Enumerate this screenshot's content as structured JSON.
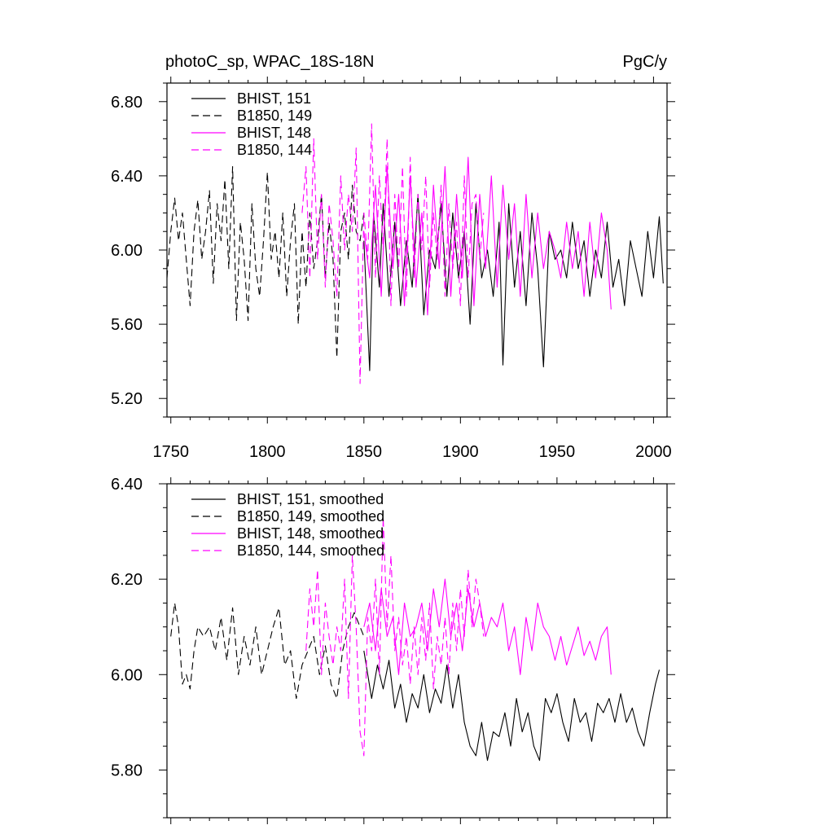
{
  "chart_data": [
    {
      "type": "line",
      "title": "photoC_sp, WPAC_18S-18N",
      "units": "PgC/y",
      "xlim": [
        1748,
        2007
      ],
      "ylim": [
        5.1,
        6.9
      ],
      "xticks": [
        1750,
        1800,
        1850,
        1900,
        1950,
        2000
      ],
      "xtick_labels": [
        "1750",
        "1800",
        "1850",
        "1900",
        "1950",
        "2000"
      ],
      "yticks": [
        5.2,
        5.6,
        6.0,
        6.4,
        6.8
      ],
      "ytick_labels": [
        "5.20",
        "5.60",
        "6.00",
        "6.40",
        "6.80"
      ],
      "legend": [
        "BHIST, 151",
        "B1850, 149",
        "BHIST, 148",
        "B1850, 144"
      ],
      "series": [
        {
          "name": "BHIST, 151",
          "color": "#000000",
          "dash": "solid",
          "x": [
            1850,
            1853,
            1855,
            1858,
            1860,
            1863,
            1866,
            1869,
            1872,
            1875,
            1878,
            1881,
            1884,
            1887,
            1890,
            1893,
            1896,
            1899,
            1902,
            1905,
            1908,
            1911,
            1914,
            1917,
            1920,
            1922,
            1925,
            1928,
            1931,
            1934,
            1937,
            1940,
            1943,
            1946,
            1949,
            1952,
            1955,
            1958,
            1961,
            1964,
            1967,
            1970,
            1973,
            1976,
            1979,
            1982,
            1985,
            1988,
            1991,
            1994,
            1997,
            2000,
            2003,
            2005
          ],
          "values": [
            6.05,
            5.35,
            6.2,
            5.8,
            6.25,
            5.75,
            6.15,
            5.7,
            6.05,
            5.8,
            6.3,
            5.65,
            6.0,
            5.9,
            6.25,
            5.75,
            6.2,
            5.85,
            6.1,
            5.6,
            6.25,
            5.85,
            6.0,
            5.75,
            6.15,
            5.38,
            6.25,
            5.8,
            6.1,
            5.7,
            6.2,
            5.9,
            5.37,
            6.1,
            5.95,
            6.0,
            5.85,
            6.15,
            5.9,
            6.05,
            5.75,
            6.0,
            5.85,
            6.15,
            5.8,
            5.95,
            5.7,
            6.05,
            5.9,
            5.75,
            6.1,
            5.85,
            6.18,
            5.82
          ]
        },
        {
          "name": "B1850, 149",
          "color": "#000000",
          "dash": "dashed",
          "x": [
            1748,
            1750,
            1752,
            1754,
            1756,
            1758,
            1760,
            1762,
            1764,
            1766,
            1768,
            1770,
            1772,
            1774,
            1776,
            1778,
            1780,
            1782,
            1784,
            1786,
            1788,
            1790,
            1792,
            1794,
            1796,
            1798,
            1800,
            1802,
            1804,
            1806,
            1808,
            1810,
            1812,
            1814,
            1816,
            1818,
            1820,
            1822,
            1824,
            1826,
            1828,
            1830,
            1832,
            1834,
            1836,
            1838,
            1840,
            1842,
            1844,
            1846,
            1848,
            1850
          ],
          "values": [
            5.85,
            6.1,
            6.28,
            6.05,
            6.2,
            5.95,
            5.7,
            6.1,
            6.27,
            5.95,
            6.1,
            6.32,
            5.82,
            6.25,
            6.05,
            6.38,
            5.9,
            6.45,
            5.62,
            6.15,
            5.95,
            5.62,
            6.25,
            5.9,
            5.75,
            6.05,
            6.42,
            5.95,
            6.1,
            5.85,
            6.2,
            5.75,
            6.05,
            6.25,
            5.6,
            6.1,
            5.8,
            6.2,
            5.9,
            6.05,
            6.3,
            5.85,
            6.15,
            5.95,
            5.42,
            6.1,
            6.2,
            5.95,
            6.35,
            6.1,
            6.05,
            6.2
          ]
        },
        {
          "name": "BHIST, 148",
          "color": "#ff00ff",
          "dash": "solid",
          "x": [
            1850,
            1853,
            1856,
            1859,
            1862,
            1865,
            1868,
            1871,
            1874,
            1877,
            1880,
            1883,
            1886,
            1889,
            1892,
            1895,
            1898,
            1901,
            1904,
            1907,
            1910,
            1913,
            1916,
            1919,
            1922,
            1925,
            1928,
            1931,
            1934,
            1937,
            1940,
            1943,
            1946,
            1949,
            1952,
            1955,
            1958,
            1961,
            1964,
            1967,
            1970,
            1973,
            1976,
            1978
          ],
          "values": [
            6.1,
            5.85,
            6.35,
            5.75,
            6.45,
            5.9,
            6.3,
            5.7,
            6.4,
            5.8,
            6.2,
            5.65,
            6.35,
            5.9,
            6.45,
            5.75,
            6.3,
            5.85,
            6.5,
            5.7,
            6.3,
            5.9,
            6.4,
            5.8,
            6.35,
            5.95,
            6.25,
            5.75,
            6.3,
            5.85,
            6.2,
            5.9,
            6.1,
            6.0,
            5.85,
            6.15,
            5.9,
            6.1,
            5.75,
            6.15,
            5.85,
            6.2,
            6.0,
            5.68
          ]
        },
        {
          "name": "B1850, 144",
          "color": "#ff00ff",
          "dash": "dashed",
          "x": [
            1818,
            1820,
            1822,
            1824,
            1826,
            1828,
            1830,
            1832,
            1834,
            1836,
            1838,
            1840,
            1842,
            1844,
            1846,
            1848,
            1850,
            1852,
            1854,
            1856,
            1858,
            1860,
            1862,
            1864,
            1866,
            1868,
            1870,
            1872,
            1874,
            1876,
            1878,
            1880,
            1882,
            1884,
            1886,
            1888,
            1890,
            1892,
            1894,
            1896,
            1898,
            1900,
            1902,
            1904,
            1906,
            1908,
            1910,
            1912
          ],
          "values": [
            6.2,
            6.45,
            5.85,
            6.6,
            5.95,
            6.3,
            5.8,
            6.25,
            6.05,
            5.75,
            6.4,
            6.0,
            6.3,
            6.1,
            6.55,
            5.28,
            6.2,
            5.95,
            6.68,
            5.85,
            6.4,
            6.0,
            6.6,
            5.7,
            6.3,
            5.9,
            6.45,
            5.75,
            6.5,
            5.85,
            6.3,
            6.0,
            6.4,
            5.8,
            6.2,
            5.95,
            6.35,
            5.75,
            6.25,
            5.9,
            6.15,
            5.7,
            6.4,
            5.85,
            6.25,
            6.3,
            5.95,
            6.2
          ]
        }
      ]
    },
    {
      "type": "line",
      "xlim": [
        1748,
        2007
      ],
      "ylim": [
        5.7,
        6.4
      ],
      "xticks": [
        1750,
        1800,
        1850,
        1900,
        1950,
        2000
      ],
      "yticks": [
        5.8,
        6.0,
        6.2,
        6.4
      ],
      "ytick_labels": [
        "5.80",
        "6.00",
        "6.20",
        "6.40"
      ],
      "legend": [
        "BHIST, 151, smoothed",
        "B1850, 149, smoothed",
        "BHIST, 148, smoothed",
        "B1850, 144, smoothed"
      ],
      "series": [
        {
          "name": "BHIST, 151, smoothed",
          "color": "#000000",
          "dash": "solid",
          "x": [
            1850,
            1854,
            1857,
            1860,
            1863,
            1866,
            1869,
            1872,
            1875,
            1878,
            1881,
            1884,
            1887,
            1890,
            1893,
            1896,
            1899,
            1902,
            1905,
            1908,
            1911,
            1914,
            1917,
            1920,
            1923,
            1926,
            1929,
            1932,
            1935,
            1938,
            1941,
            1944,
            1947,
            1950,
            1953,
            1956,
            1959,
            1962,
            1965,
            1968,
            1971,
            1974,
            1977,
            1980,
            1983,
            1986,
            1989,
            1992,
            1995,
            1998,
            2001,
            2003
          ],
          "values": [
            6.05,
            5.95,
            6.02,
            5.97,
            6.03,
            5.93,
            5.98,
            5.9,
            5.96,
            5.93,
            6.0,
            5.92,
            5.97,
            5.94,
            6.02,
            5.93,
            6.0,
            5.9,
            5.85,
            5.83,
            5.9,
            5.82,
            5.88,
            5.87,
            5.92,
            5.85,
            5.95,
            5.88,
            5.92,
            5.85,
            5.82,
            5.95,
            5.92,
            5.96,
            5.9,
            5.86,
            5.95,
            5.9,
            5.92,
            5.86,
            5.94,
            5.92,
            5.95,
            5.9,
            5.96,
            5.9,
            5.93,
            5.88,
            5.85,
            5.92,
            5.98,
            6.01
          ]
        },
        {
          "name": "B1850, 149, smoothed",
          "color": "#000000",
          "dash": "dashed",
          "x": [
            1750,
            1752,
            1754,
            1756,
            1758,
            1760,
            1762,
            1764,
            1767,
            1770,
            1773,
            1776,
            1779,
            1782,
            1785,
            1788,
            1791,
            1794,
            1797,
            1800,
            1803,
            1806,
            1809,
            1812,
            1815,
            1818,
            1821,
            1824,
            1827,
            1830,
            1833,
            1836,
            1839,
            1842,
            1845,
            1848,
            1850
          ],
          "values": [
            6.08,
            6.15,
            6.1,
            5.98,
            6.0,
            5.97,
            6.05,
            6.1,
            6.08,
            6.1,
            6.05,
            6.12,
            6.03,
            6.14,
            6.0,
            6.08,
            6.02,
            6.1,
            6.0,
            6.05,
            6.1,
            6.14,
            6.02,
            6.05,
            5.95,
            6.02,
            6.05,
            6.08,
            6.0,
            6.06,
            5.98,
            5.95,
            6.05,
            6.1,
            6.13,
            6.1,
            6.08
          ]
        },
        {
          "name": "BHIST, 148, smoothed",
          "color": "#ff00ff",
          "dash": "solid",
          "x": [
            1850,
            1853,
            1856,
            1859,
            1862,
            1865,
            1868,
            1871,
            1874,
            1877,
            1880,
            1883,
            1886,
            1889,
            1892,
            1895,
            1898,
            1901,
            1904,
            1907,
            1910,
            1913,
            1916,
            1919,
            1922,
            1925,
            1928,
            1931,
            1934,
            1937,
            1940,
            1943,
            1946,
            1949,
            1952,
            1955,
            1958,
            1961,
            1964,
            1967,
            1970,
            1973,
            1976,
            1978
          ],
          "values": [
            6.1,
            6.15,
            6.05,
            6.18,
            6.08,
            6.12,
            6.0,
            6.15,
            6.08,
            6.1,
            6.15,
            6.05,
            6.18,
            6.1,
            6.2,
            6.08,
            6.15,
            6.05,
            6.18,
            6.1,
            6.15,
            6.08,
            6.12,
            6.1,
            6.15,
            6.05,
            6.1,
            6.0,
            6.12,
            6.05,
            6.15,
            6.1,
            6.08,
            6.03,
            6.08,
            6.02,
            6.06,
            6.1,
            6.04,
            6.07,
            6.03,
            6.08,
            6.1,
            6.0
          ]
        },
        {
          "name": "B1850, 144, smoothed",
          "color": "#ff00ff",
          "dash": "dashed",
          "x": [
            1820,
            1822,
            1824,
            1826,
            1828,
            1830,
            1832,
            1834,
            1836,
            1838,
            1840,
            1842,
            1844,
            1846,
            1848,
            1850,
            1852,
            1854,
            1856,
            1858,
            1860,
            1862,
            1864,
            1866,
            1868,
            1870,
            1872,
            1874,
            1876,
            1878,
            1880,
            1882,
            1884,
            1886,
            1888,
            1890,
            1892,
            1894,
            1896,
            1898,
            1900,
            1902,
            1904,
            1906,
            1908,
            1910,
            1912
          ],
          "values": [
            6.05,
            6.18,
            6.1,
            6.22,
            6.0,
            6.15,
            6.08,
            6.02,
            6.1,
            6.05,
            6.2,
            5.95,
            6.25,
            6.1,
            5.88,
            5.83,
            6.12,
            6.05,
            6.2,
            6.0,
            6.33,
            6.1,
            6.25,
            6.05,
            6.12,
            6.02,
            6.08,
            5.98,
            6.1,
            6.0,
            6.12,
            6.03,
            6.15,
            5.97,
            6.08,
            6.02,
            6.12,
            6.0,
            6.15,
            6.05,
            6.18,
            6.08,
            6.22,
            6.1,
            6.2,
            6.15,
            6.08
          ]
        }
      ]
    }
  ]
}
